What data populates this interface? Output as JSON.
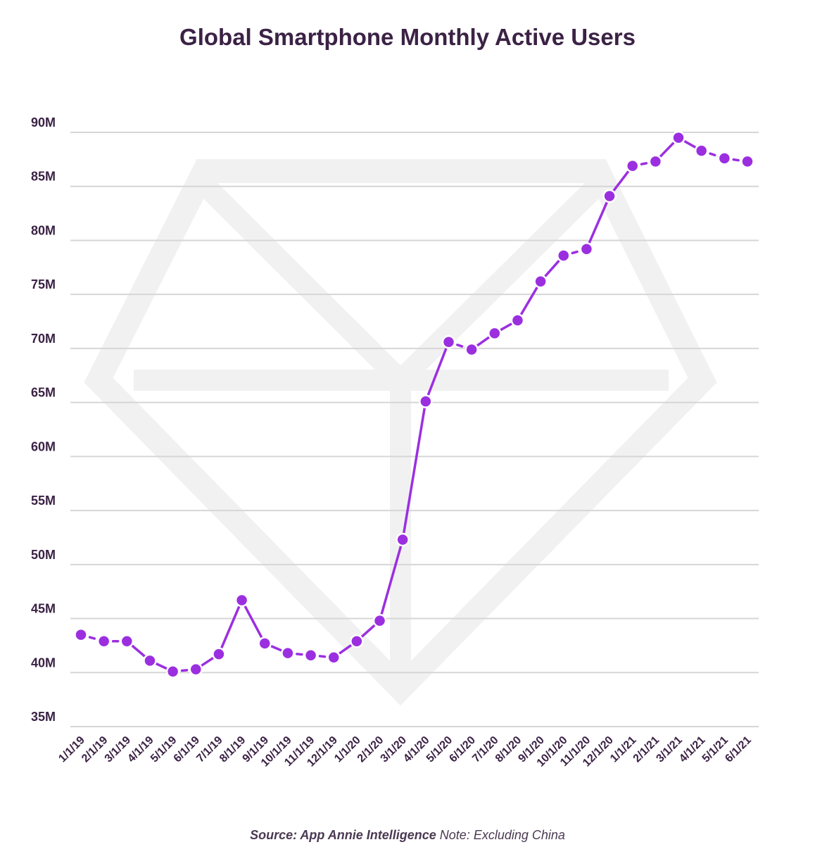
{
  "chart_data": {
    "type": "line",
    "title": "Global Smartphone Monthly Active Users",
    "x": [
      "1/1/19",
      "2/1/19",
      "3/1/19",
      "4/1/19",
      "5/1/19",
      "6/1/19",
      "7/1/19",
      "8/1/19",
      "9/1/19",
      "10/1/19",
      "11/1/19",
      "12/1/19",
      "1/1/20",
      "2/1/20",
      "3/1/20",
      "4/1/20",
      "5/1/20",
      "6/1/20",
      "7/1/20",
      "8/1/20",
      "9/1/20",
      "10/1/20",
      "11/1/20",
      "12/1/20",
      "1/1/21",
      "2/1/21",
      "3/1/21",
      "4/1/21",
      "5/1/21",
      "6/1/21"
    ],
    "series": [
      {
        "values": [
          43.5,
          42.9,
          42.9,
          41.1,
          40.1,
          40.3,
          41.7,
          46.7,
          42.7,
          41.8,
          41.6,
          41.4,
          42.9,
          44.8,
          52.3,
          65.1,
          70.6,
          69.9,
          71.4,
          72.6,
          76.2,
          78.6,
          79.2,
          84.1,
          86.9,
          87.3,
          89.5,
          88.3,
          87.6,
          87.3
        ]
      }
    ],
    "yticks": [
      "35M",
      "40M",
      "45M",
      "50M",
      "55M",
      "60M",
      "65M",
      "70M",
      "75M",
      "80M",
      "85M",
      "90M"
    ],
    "ylim": [
      35,
      90
    ],
    "grid": true,
    "colors": {
      "line": "#9b2fe0",
      "grid": "#d6d6d6",
      "text": "#3b2245",
      "watermark": "#f1f1f1"
    }
  },
  "footer": {
    "source": "Source: App Annie Intelligence",
    "note": "Note: Excluding China"
  }
}
